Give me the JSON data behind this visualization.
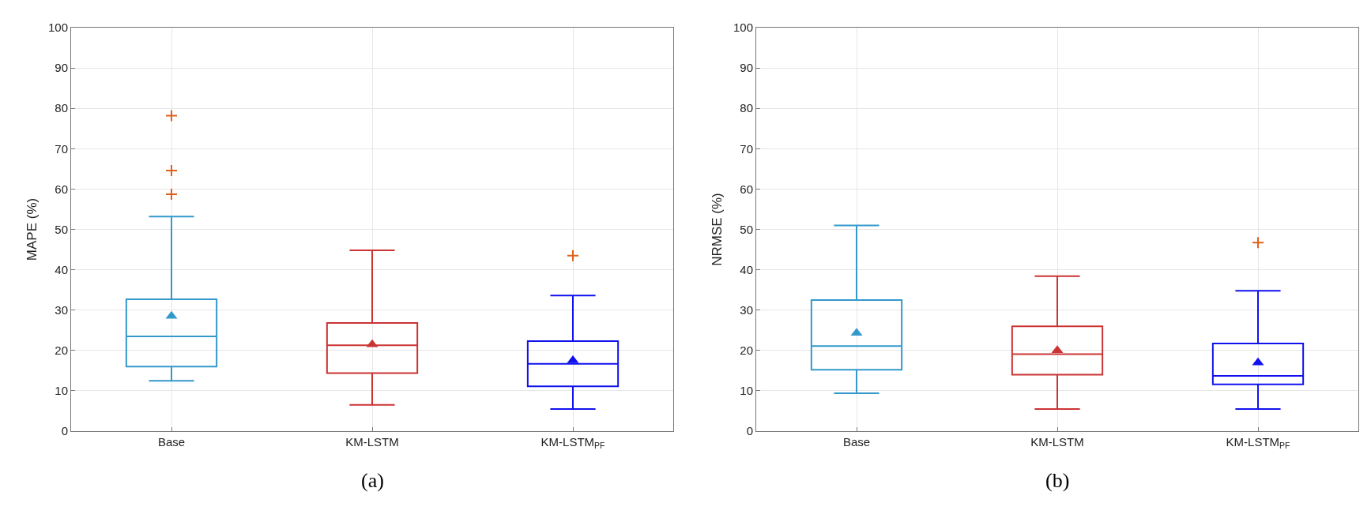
{
  "chart_data": [
    {
      "type": "box",
      "ylabel": "MAPE (%)",
      "categories": [
        "Base",
        "KM-LSTM",
        "KM-LSTM$_{PF}$"
      ],
      "colors": [
        "#3399cc",
        "#cc3333",
        "#1111ee"
      ],
      "ylim": [
        0,
        100
      ],
      "yticks": [
        0,
        10,
        20,
        30,
        40,
        50,
        60,
        70,
        80,
        90,
        100
      ],
      "grid": true,
      "marker": "triangle",
      "annotations": [
        "(a)"
      ],
      "boxes": [
        {
          "low": 12.5,
          "q1": 16,
          "median": 23.5,
          "q3": 32.7,
          "high": 53.2,
          "mean": 28.5,
          "outliers": [
            78.2,
            64.6,
            58.7
          ]
        },
        {
          "low": 6.5,
          "q1": 14.4,
          "median": 21.3,
          "q3": 26.8,
          "high": 44.8,
          "mean": 21.5
        },
        {
          "low": 5.5,
          "q1": 11.1,
          "median": 16.7,
          "q3": 22.3,
          "high": 33.6,
          "mean": 17.5,
          "outliers": [
            43.5
          ]
        }
      ]
    },
    {
      "type": "box",
      "ylabel": "NRMSE (%)",
      "categories": [
        "Base",
        "KM-LSTM",
        "KM-LSTM$_{PF}$"
      ],
      "colors": [
        "#3399cc",
        "#cc3333",
        "#1111ee"
      ],
      "ylim": [
        0,
        100
      ],
      "yticks": [
        0,
        10,
        20,
        30,
        40,
        50,
        60,
        70,
        80,
        90,
        100
      ],
      "grid": true,
      "marker": "triangle",
      "annotations": [
        "(b)"
      ],
      "boxes": [
        {
          "low": 9.4,
          "q1": 15.2,
          "median": 21.1,
          "q3": 32.5,
          "high": 51,
          "mean": 24.3
        },
        {
          "low": 5.5,
          "q1": 14,
          "median": 19.1,
          "q3": 26,
          "high": 38.4,
          "mean": 20
        },
        {
          "low": 5.5,
          "q1": 11.6,
          "median": 13.7,
          "q3": 21.7,
          "high": 34.8,
          "mean": 17,
          "outliers": [
            46.7
          ]
        }
      ]
    }
  ]
}
